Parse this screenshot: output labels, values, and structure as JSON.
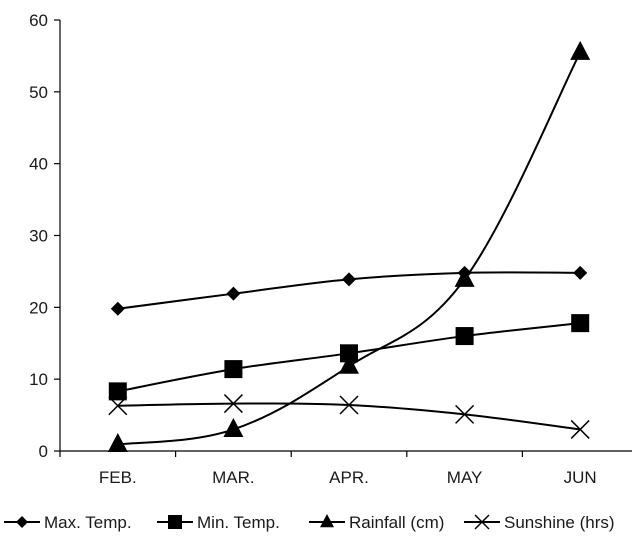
{
  "chart_data": {
    "type": "line",
    "categories": [
      "FEB.",
      "MAR.",
      "APR.",
      "MAY",
      "JUN"
    ],
    "series": [
      {
        "name": "Max. Temp.",
        "marker": "diamond",
        "values": [
          19.8,
          21.9,
          23.9,
          24.8,
          24.8
        ]
      },
      {
        "name": "Min. Temp.",
        "marker": "square",
        "values": [
          8.3,
          11.4,
          13.6,
          16.0,
          17.8
        ]
      },
      {
        "name": "Rainfall (cm)",
        "marker": "triangle",
        "values": [
          0.9,
          3.0,
          11.8,
          23.9,
          55.5
        ]
      },
      {
        "name": "Sunshine (hrs)",
        "marker": "x",
        "values": [
          6.3,
          6.6,
          6.4,
          5.1,
          3.0
        ]
      }
    ],
    "yticks": [
      "0",
      "10",
      "20",
      "30",
      "40",
      "50",
      "60"
    ],
    "ylim": [
      0,
      60
    ],
    "title": "",
    "xlabel": "",
    "ylabel": "",
    "grid": false,
    "legend_position": "bottom",
    "colors": {
      "line": "#000000",
      "text": "#1a1a1a"
    }
  }
}
